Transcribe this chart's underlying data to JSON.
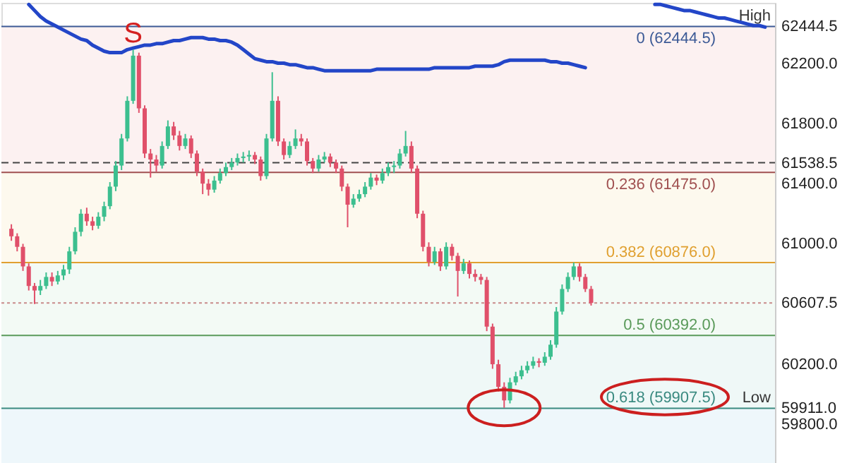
{
  "chart_data": {
    "type": "candlestick",
    "categories": [
      null,
      null,
      null,
      null,
      null,
      null,
      null,
      null,
      null,
      null,
      null,
      null,
      null,
      null,
      null,
      null,
      null,
      null,
      null,
      null,
      null,
      null,
      null,
      null,
      null,
      null,
      null,
      null,
      null,
      null,
      null,
      null,
      null,
      null,
      null,
      null,
      null,
      null,
      null,
      null,
      null,
      null,
      null,
      null,
      null,
      null,
      null,
      null,
      null,
      null,
      null,
      null,
      null,
      null,
      null,
      null,
      null,
      null,
      null,
      null,
      null,
      null,
      null,
      null,
      null,
      null,
      null,
      null,
      null,
      null,
      null,
      null,
      null,
      null,
      null,
      null,
      null,
      null,
      null,
      null,
      null,
      null,
      null,
      null,
      null,
      null,
      null,
      null,
      null,
      null,
      null,
      null,
      null,
      null,
      null,
      null,
      null,
      null,
      null,
      null,
      null,
      null,
      null,
      null,
      null,
      null,
      null,
      null,
      null,
      null,
      null,
      null,
      null,
      null,
      null,
      null,
      null,
      null,
      null,
      null,
      null,
      null,
      null,
      null,
      null,
      null,
      null,
      null,
      null,
      null,
      null
    ],
    "ohlc": [
      [
        61100,
        61130,
        61020,
        61050
      ],
      [
        61050,
        61070,
        60950,
        60980
      ],
      [
        60980,
        61000,
        60820,
        60850
      ],
      [
        60850,
        60870,
        60690,
        60720
      ],
      [
        60720,
        60740,
        60600,
        60690
      ],
      [
        60690,
        60760,
        60660,
        60720
      ],
      [
        60720,
        60810,
        60700,
        60780
      ],
      [
        60780,
        60810,
        60720,
        60750
      ],
      [
        60750,
        60820,
        60730,
        60790
      ],
      [
        60790,
        60860,
        60760,
        60830
      ],
      [
        60830,
        60980,
        60800,
        60950
      ],
      [
        60950,
        61110,
        60930,
        61080
      ],
      [
        61080,
        61230,
        61050,
        61200
      ],
      [
        61200,
        61240,
        61120,
        61150
      ],
      [
        61150,
        61180,
        61090,
        61120
      ],
      [
        61120,
        61210,
        61100,
        61180
      ],
      [
        61180,
        61280,
        61150,
        61250
      ],
      [
        61250,
        61410,
        61230,
        61380
      ],
      [
        61380,
        61550,
        61350,
        61520
      ],
      [
        61520,
        61730,
        61490,
        61700
      ],
      [
        61700,
        61980,
        61680,
        61950
      ],
      [
        61950,
        62290,
        61930,
        62250
      ],
      [
        62250,
        62270,
        61870,
        61900
      ],
      [
        61900,
        61920,
        61570,
        61600
      ],
      [
        61600,
        61630,
        61440,
        61560
      ],
      [
        61560,
        61590,
        61480,
        61520
      ],
      [
        61520,
        61680,
        61500,
        61650
      ],
      [
        61650,
        61820,
        61630,
        61780
      ],
      [
        61780,
        61810,
        61690,
        61720
      ],
      [
        61720,
        61750,
        61620,
        61650
      ],
      [
        61650,
        61730,
        61630,
        61700
      ],
      [
        61700,
        61720,
        61570,
        61600
      ],
      [
        61600,
        61620,
        61450,
        61480
      ],
      [
        61480,
        61500,
        61330,
        61400
      ],
      [
        61400,
        61430,
        61320,
        61360
      ],
      [
        61360,
        61450,
        61340,
        61420
      ],
      [
        61420,
        61500,
        61400,
        61470
      ],
      [
        61470,
        61540,
        61450,
        61510
      ],
      [
        61510,
        61570,
        61490,
        61540
      ],
      [
        61540,
        61600,
        61520,
        61570
      ],
      [
        61570,
        61610,
        61540,
        61580
      ],
      [
        61580,
        61620,
        61550,
        61590
      ],
      [
        61590,
        61610,
        61530,
        61560
      ],
      [
        61560,
        61580,
        61420,
        61450
      ],
      [
        61450,
        61730,
        61430,
        61700
      ],
      [
        61700,
        62140,
        61680,
        61950
      ],
      [
        61950,
        61980,
        61650,
        61680
      ],
      [
        61680,
        61700,
        61560,
        61590
      ],
      [
        61590,
        61680,
        61570,
        61650
      ],
      [
        61650,
        61760,
        61630,
        61700
      ],
      [
        61700,
        61730,
        61650,
        61680
      ],
      [
        61680,
        61700,
        61520,
        61550
      ],
      [
        61550,
        61570,
        61470,
        61500
      ],
      [
        61500,
        61590,
        61480,
        61560
      ],
      [
        61560,
        61610,
        61540,
        61580
      ],
      [
        61580,
        61600,
        61510,
        61540
      ],
      [
        61540,
        61560,
        61470,
        61500
      ],
      [
        61500,
        61520,
        61350,
        61380
      ],
      [
        61380,
        61400,
        61110,
        61260
      ],
      [
        61260,
        61330,
        61240,
        61300
      ],
      [
        61300,
        61360,
        61280,
        61330
      ],
      [
        61330,
        61410,
        61310,
        61380
      ],
      [
        61380,
        61470,
        61360,
        61440
      ],
      [
        61440,
        61460,
        61390,
        61420
      ],
      [
        61420,
        61500,
        61400,
        61470
      ],
      [
        61470,
        61540,
        61450,
        61510
      ],
      [
        61510,
        61550,
        61470,
        61520
      ],
      [
        61520,
        61630,
        61500,
        61600
      ],
      [
        61600,
        61750,
        61580,
        61650
      ],
      [
        61650,
        61680,
        61470,
        61500
      ],
      [
        61500,
        61520,
        61170,
        61200
      ],
      [
        61200,
        61220,
        60950,
        60980
      ],
      [
        60980,
        61010,
        60850,
        60880
      ],
      [
        60880,
        60980,
        60860,
        60950
      ],
      [
        60950,
        60970,
        60820,
        60850
      ],
      [
        60850,
        61010,
        60830,
        60980
      ],
      [
        60980,
        61000,
        60890,
        60920
      ],
      [
        60920,
        60940,
        60650,
        60820
      ],
      [
        60820,
        60900,
        60800,
        60870
      ],
      [
        60870,
        60890,
        60770,
        60800
      ],
      [
        60800,
        60830,
        60750,
        60780
      ],
      [
        60780,
        60800,
        60730,
        60760
      ],
      [
        60760,
        60780,
        60420,
        60450
      ],
      [
        60450,
        60470,
        60170,
        60200
      ],
      [
        60200,
        60230,
        60020,
        60050
      ],
      [
        60050,
        60080,
        59911,
        59960
      ],
      [
        59960,
        60110,
        59940,
        60080
      ],
      [
        60080,
        60150,
        60060,
        60120
      ],
      [
        60120,
        60190,
        60100,
        60160
      ],
      [
        60160,
        60220,
        60140,
        60190
      ],
      [
        60190,
        60250,
        60170,
        60220
      ],
      [
        60220,
        60240,
        60180,
        60210
      ],
      [
        60210,
        60280,
        60190,
        60250
      ],
      [
        60250,
        60360,
        60230,
        60330
      ],
      [
        60330,
        60580,
        60310,
        60550
      ],
      [
        60550,
        60730,
        60530,
        60700
      ],
      [
        60700,
        60810,
        60680,
        60780
      ],
      [
        60780,
        60876,
        60760,
        60850
      ],
      [
        60850,
        60870,
        60750,
        60780
      ],
      [
        60780,
        60800,
        60680,
        60700
      ],
      [
        60700,
        60720,
        60590,
        60607.5
      ],
      null,
      null,
      null,
      null,
      null,
      null,
      null,
      null,
      null,
      null,
      null,
      null,
      null,
      null,
      null,
      null,
      null,
      null,
      null,
      null,
      null,
      null,
      null,
      null,
      null,
      null,
      null,
      null,
      null,
      null
    ],
    "series": [
      {
        "type": "line",
        "color": "#2346c8",
        "values": [
          null,
          null,
          null,
          62590,
          62550,
          62510,
          62480,
          62460,
          62440,
          62420,
          62400,
          62380,
          62360,
          62350,
          62320,
          62300,
          62280,
          62270,
          62270,
          62270,
          62290,
          62300,
          62310,
          62320,
          62320,
          62330,
          62330,
          62340,
          62350,
          62350,
          62360,
          62370,
          62370,
          62370,
          62360,
          62360,
          62350,
          62350,
          62340,
          62320,
          62290,
          62260,
          62230,
          62220,
          62210,
          62210,
          62200,
          62200,
          62190,
          62190,
          62180,
          62170,
          62170,
          62160,
          62150,
          62150,
          62150,
          62150,
          62150,
          62150,
          62150,
          62150,
          62150,
          62160,
          62160,
          62160,
          62160,
          62160,
          62160,
          62160,
          62160,
          62160,
          62160,
          62170,
          62170,
          62170,
          62170,
          62170,
          62170,
          62170,
          62180,
          62180,
          62180,
          62180,
          62190,
          62210,
          62220,
          62220,
          62220,
          62220,
          62220,
          62220,
          62220,
          62210,
          62210,
          62200,
          62200,
          62190,
          62180,
          62170,
          null,
          null,
          null,
          null,
          null,
          null,
          null,
          null,
          null,
          null,
          null,
          null,
          null,
          null,
          null,
          null,
          null,
          null,
          null,
          null,
          null,
          null,
          null,
          null,
          null,
          null,
          null,
          null,
          null,
          null,
          null
        ]
      },
      {
        "type": "line",
        "color": "#2346c8",
        "values": [
          null,
          null,
          null,
          null,
          null,
          null,
          null,
          null,
          null,
          null,
          null,
          null,
          null,
          null,
          null,
          null,
          null,
          null,
          null,
          null,
          null,
          null,
          null,
          null,
          null,
          null,
          null,
          null,
          null,
          null,
          null,
          null,
          null,
          null,
          null,
          null,
          null,
          null,
          null,
          null,
          null,
          null,
          null,
          null,
          null,
          null,
          null,
          null,
          null,
          null,
          null,
          null,
          null,
          null,
          null,
          null,
          null,
          null,
          null,
          null,
          null,
          null,
          null,
          null,
          null,
          null,
          null,
          null,
          null,
          null,
          null,
          null,
          null,
          null,
          null,
          null,
          null,
          null,
          null,
          null,
          null,
          null,
          null,
          null,
          null,
          null,
          null,
          null,
          null,
          null,
          null,
          null,
          null,
          null,
          null,
          null,
          null,
          null,
          null,
          null,
          null,
          null,
          null,
          null,
          null,
          null,
          null,
          null,
          null,
          null,
          null,
          62590,
          62590,
          62580,
          62570,
          62560,
          62550,
          62550,
          62540,
          62530,
          62520,
          62510,
          62500,
          62500,
          62490,
          62480,
          62470,
          62460,
          62450,
          62450,
          62440
        ]
      }
    ],
    "ylim": [
      59544,
      62601
    ],
    "yticks": [
      {
        "value": 62444.5,
        "label": "62444.5"
      },
      {
        "value": 62200,
        "label": "62200.0"
      },
      {
        "value": 61800,
        "label": "61800.0"
      },
      {
        "value": 61538.5,
        "label": "61538.5"
      },
      {
        "value": 61400,
        "label": "61400.0"
      },
      {
        "value": 61000,
        "label": "61000.0"
      },
      {
        "value": 60607.5,
        "label": "60607.5"
      },
      {
        "value": 60200,
        "label": "60200.0"
      },
      {
        "value": 59911,
        "label": "59911.0"
      },
      {
        "value": 59800,
        "label": "59800.0"
      }
    ],
    "tick_labels": "y",
    "bands": [
      {
        "axis": "y",
        "from": 61475,
        "to": 62444.5,
        "color": "#fcf1f1"
      },
      {
        "axis": "y",
        "from": 60876,
        "to": 61475,
        "color": "#fdf9ee"
      },
      {
        "axis": "y",
        "from": 60392,
        "to": 60876,
        "color": "#f3faf5"
      },
      {
        "axis": "y",
        "from": 59907.5,
        "to": 60392,
        "color": "#eff8f7"
      },
      {
        "axis": "y",
        "from": 59544,
        "to": 59907.5,
        "color": "#eef7fb"
      }
    ],
    "ref_lines": [
      {
        "axis": "y",
        "value": 62444.5,
        "label": "0 (62444.5)",
        "color": "#3c5a96",
        "line_style": "solid"
      },
      {
        "axis": "y",
        "value": 61475,
        "label": "0.236 (61475.0)",
        "color": "#a05050",
        "line_style": "solid"
      },
      {
        "axis": "y",
        "value": 60876,
        "label": "0.382 (60876.0)",
        "color": "#e0a030",
        "line_style": "solid"
      },
      {
        "axis": "y",
        "value": 60392,
        "label": "0.5 (60392.0)",
        "color": "#5a9a5a",
        "line_style": "solid"
      },
      {
        "axis": "y",
        "value": 59907.5,
        "label": "0.618 (59907.5)",
        "color": "#3a8a80",
        "line_style": "solid"
      },
      {
        "axis": "y",
        "value": 61538.5,
        "color": "#444444",
        "line_style": "dashed"
      },
      {
        "axis": "y",
        "value": 60607.5,
        "color": "#c98a8a",
        "line_style": "dotted"
      }
    ],
    "annotations": [
      "S",
      {
        "text": "High",
        "y": 62444.5
      },
      {
        "text": "Low",
        "y": 59911
      }
    ]
  }
}
